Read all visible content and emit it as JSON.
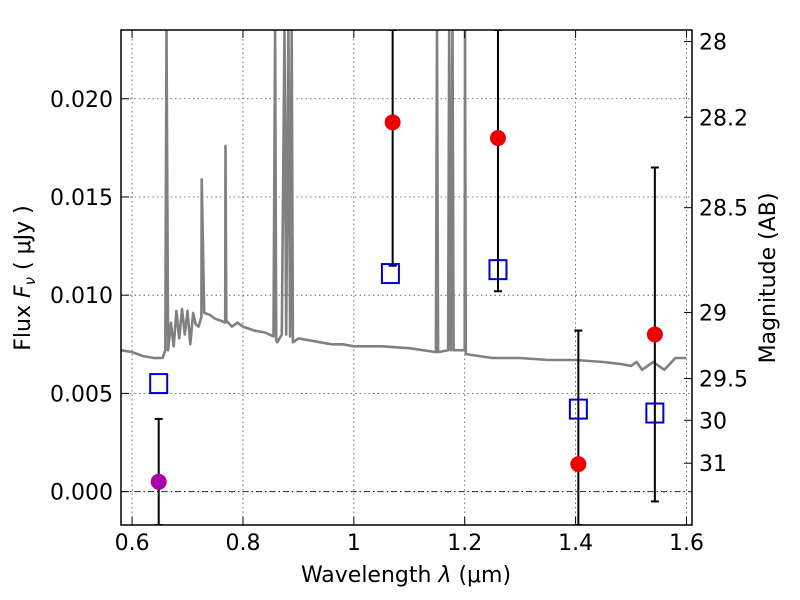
{
  "chart_data": {
    "type": "scatter",
    "xlabel": "Wavelength  λ (μm)",
    "ylabel": "Flux  F_ν  ( μJy )",
    "ylabel_parts": {
      "pre": "Flux  ",
      "sym": "F",
      "sub": "ν",
      "post": "  ( μJy )"
    },
    "xlabel_parts": {
      "pre": "Wavelength  ",
      "sym": "λ",
      "post": " (μm)"
    },
    "y2label": "Magnitude (AB)",
    "xlim": [
      0.58,
      1.61
    ],
    "ylim": [
      -0.0017,
      0.0235
    ],
    "grid": true,
    "x_ticks": [
      {
        "value": 0.6,
        "label": "0.6"
      },
      {
        "value": 0.8,
        "label": "0.8"
      },
      {
        "value": 1.0,
        "label": "1"
      },
      {
        "value": 1.2,
        "label": "1.2"
      },
      {
        "value": 1.4,
        "label": "1.4"
      },
      {
        "value": 1.6,
        "label": "1.6"
      }
    ],
    "y_ticks": [
      {
        "value": 0.0,
        "label": "0.000"
      },
      {
        "value": 0.005,
        "label": "0.005"
      },
      {
        "value": 0.01,
        "label": "0.010"
      },
      {
        "value": 0.015,
        "label": "0.015"
      },
      {
        "value": 0.02,
        "label": "0.020"
      }
    ],
    "y2_ticks": [
      {
        "value": 28.0,
        "label": "28"
      },
      {
        "value": 28.2,
        "label": "28.2"
      },
      {
        "value": 28.5,
        "label": "28.5"
      },
      {
        "value": 29.0,
        "label": "29"
      },
      {
        "value": 29.5,
        "label": "29.5"
      },
      {
        "value": 30.0,
        "label": "30"
      },
      {
        "value": 31.0,
        "label": "31"
      }
    ],
    "zero_line": 0.0,
    "series": [
      {
        "kind": "spectrum",
        "color": "#808080",
        "x": [
          0.58,
          0.6,
          0.62,
          0.64,
          0.655,
          0.66,
          0.662,
          0.665,
          0.67,
          0.675,
          0.68,
          0.685,
          0.69,
          0.695,
          0.7,
          0.705,
          0.71,
          0.715,
          0.72,
          0.725,
          0.7255,
          0.73,
          0.74,
          0.75,
          0.76,
          0.768,
          0.7685,
          0.77,
          0.78,
          0.79,
          0.8,
          0.82,
          0.84,
          0.855,
          0.858,
          0.86,
          0.862,
          0.87,
          0.875,
          0.878,
          0.882,
          0.885,
          0.888,
          0.89,
          0.9,
          0.92,
          0.94,
          0.96,
          0.98,
          1.0,
          1.05,
          1.1,
          1.148,
          1.15,
          1.152,
          1.17,
          1.172,
          1.175,
          1.178,
          1.18,
          1.2,
          1.2005,
          1.202,
          1.25,
          1.3,
          1.35,
          1.4,
          1.45,
          1.48,
          1.5,
          1.51,
          1.52,
          1.54,
          1.56,
          1.58,
          1.6
        ],
        "y": [
          0.0072,
          0.0071,
          0.0069,
          0.0068,
          0.0068,
          0.0072,
          0.0235,
          0.0072,
          0.0086,
          0.0074,
          0.0092,
          0.0078,
          0.0093,
          0.008,
          0.0092,
          0.0075,
          0.0091,
          0.0085,
          0.0084,
          0.0089,
          0.0159,
          0.0091,
          0.009,
          0.0088,
          0.0087,
          0.0086,
          0.0176,
          0.0087,
          0.0084,
          0.0086,
          0.0084,
          0.0082,
          0.0081,
          0.0079,
          0.0235,
          0.0077,
          0.0076,
          0.008,
          0.0235,
          0.008,
          0.0235,
          0.0079,
          0.0235,
          0.0076,
          0.0078,
          0.0077,
          0.0076,
          0.0075,
          0.0075,
          0.0074,
          0.0074,
          0.0073,
          0.0071,
          0.0235,
          0.0071,
          0.0072,
          0.0235,
          0.0072,
          0.0235,
          0.0072,
          0.0072,
          0.0235,
          0.007,
          0.0068,
          0.0068,
          0.0067,
          0.0067,
          0.0066,
          0.0065,
          0.0064,
          0.0066,
          0.0062,
          0.0066,
          0.0062,
          0.0068,
          0.0068
        ]
      },
      {
        "kind": "errorbar",
        "color": "#000000",
        "points": [
          {
            "x": 0.648,
            "y_low": -0.0017,
            "y_high": 0.0037
          },
          {
            "x": 1.07,
            "y_low": 0.0115,
            "y_high": 0.0235
          },
          {
            "x": 1.26,
            "y_low": 0.0102,
            "y_high": 0.0235
          },
          {
            "x": 1.405,
            "y_low": -0.0017,
            "y_high": 0.0082
          },
          {
            "x": 1.543,
            "y_low": -0.0005,
            "y_high": 0.0165
          }
        ]
      },
      {
        "kind": "points",
        "marker": "circle",
        "color": "#ee0000",
        "x": [
          1.07,
          1.26,
          1.405,
          1.543
        ],
        "y": [
          0.0188,
          0.018,
          0.0014,
          0.008
        ]
      },
      {
        "kind": "points",
        "marker": "circle",
        "color": "#aa00aa",
        "x": [
          0.648
        ],
        "y": [
          0.0005
        ]
      },
      {
        "kind": "points",
        "marker": "open-square",
        "color": "#0000cc",
        "x": [
          0.648,
          1.066,
          1.26,
          1.405,
          1.543
        ],
        "y": [
          0.0055,
          0.0111,
          0.0113,
          0.0042,
          0.004
        ]
      }
    ]
  }
}
